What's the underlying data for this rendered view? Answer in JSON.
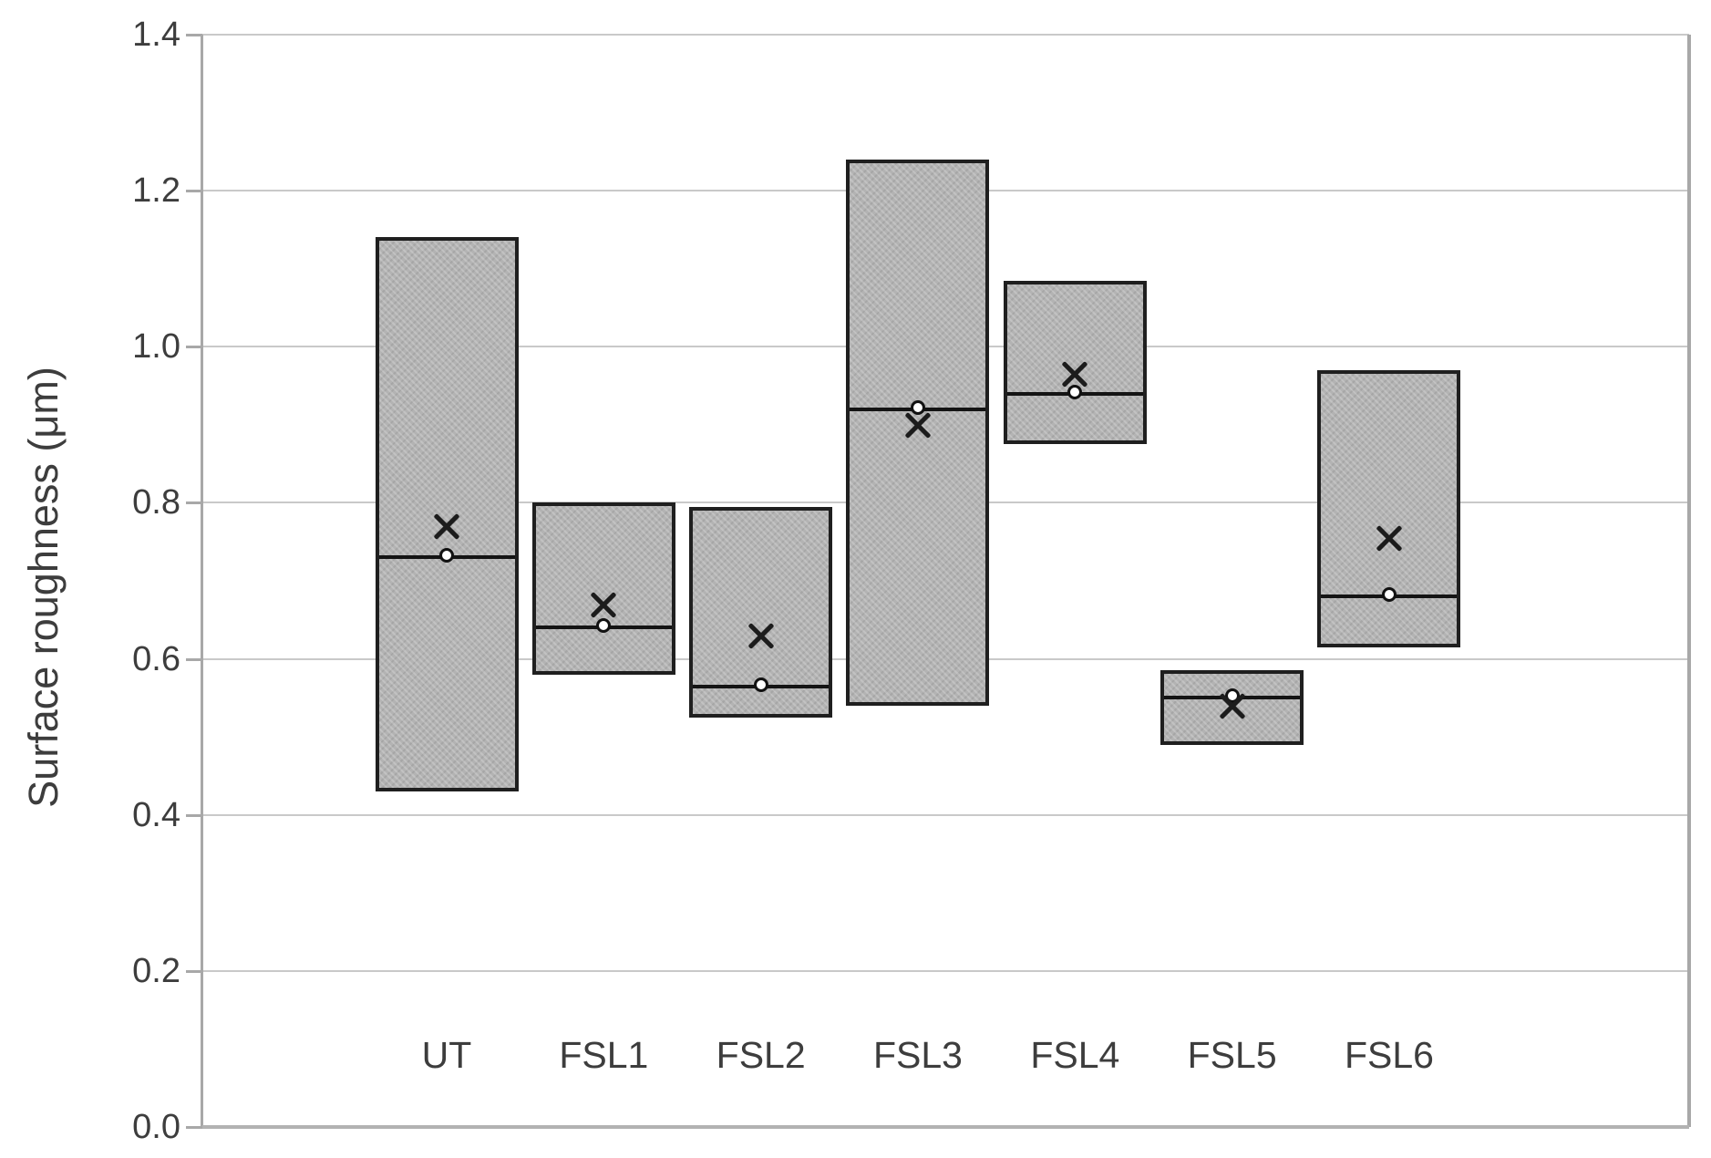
{
  "chart_data": {
    "type": "box",
    "title": "",
    "xlabel": "",
    "ylabel": "Surface roughness (μm)",
    "ylim": [
      0.0,
      1.4
    ],
    "ytick_step": 0.2,
    "ytick_labels": [
      "1.4",
      "1.2",
      "1.0",
      "0.8",
      "0.6",
      "0.4",
      "0.2",
      "0.0"
    ],
    "grid": true,
    "legend": "none",
    "categories": [
      "UT",
      "FSL1",
      "FSL2",
      "FSL3",
      "FSL4",
      "FSL5",
      "FSL6"
    ],
    "boxes": [
      {
        "category": "UT",
        "box_top": 1.14,
        "median": 0.73,
        "mean": 0.77,
        "box_bottom": 0.43
      },
      {
        "category": "FSL1",
        "box_top": 0.8,
        "median": 0.64,
        "mean": 0.67,
        "box_bottom": 0.58
      },
      {
        "category": "FSL2",
        "box_top": 0.795,
        "median": 0.565,
        "mean": 0.63,
        "box_bottom": 0.525
      },
      {
        "category": "FSL3",
        "box_top": 1.24,
        "median": 0.92,
        "mean": 0.9,
        "box_bottom": 0.54
      },
      {
        "category": "FSL4",
        "box_top": 1.085,
        "median": 0.94,
        "mean": 0.965,
        "box_bottom": 0.875
      },
      {
        "category": "FSL5",
        "box_top": 0.585,
        "median": 0.55,
        "mean": 0.54,
        "box_bottom": 0.49
      },
      {
        "category": "FSL6",
        "box_top": 0.97,
        "median": 0.68,
        "mean": 0.755,
        "box_bottom": 0.615
      }
    ],
    "markers": {
      "median_marker": "open-circle",
      "mean_marker": "x"
    },
    "colors": {
      "box_fill": "#b3b3b3",
      "box_border": "#1f1f1f",
      "gridline": "#c9c9c9",
      "axis_line": "#a8a8a8",
      "text": "#3d3d3d",
      "median_marker_fill": "#ffffff"
    }
  }
}
